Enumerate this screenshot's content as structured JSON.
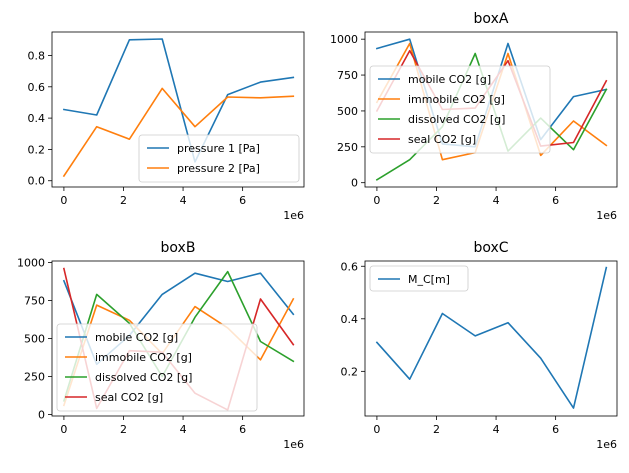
{
  "chart_data": [
    {
      "type": "line",
      "title": "",
      "xlabel": "",
      "ylabel": "",
      "x_multiplier": "1e6",
      "xlim": [
        -0.4,
        8.06
      ],
      "ylim": [
        -0.04,
        0.95
      ],
      "xticks": [
        0,
        2,
        4,
        6
      ],
      "yticks": [
        0.0,
        0.2,
        0.4,
        0.6,
        0.8
      ],
      "ytick_labels": [
        "0.0",
        "0.2",
        "0.4",
        "0.6",
        "0.8"
      ],
      "x": [
        0,
        1.1,
        2.2,
        3.3,
        4.4,
        5.5,
        6.6,
        7.7
      ],
      "legend_position": "lower right",
      "series": [
        {
          "name": "pressure 1 [Pa]",
          "color": "#1f77b4",
          "values": [
            0.455,
            0.42,
            0.9,
            0.905,
            0.12,
            0.55,
            0.63,
            0.66
          ]
        },
        {
          "name": "pressure 2 [Pa]",
          "color": "#ff7f0e",
          "values": [
            0.03,
            0.345,
            0.265,
            0.59,
            0.345,
            0.535,
            0.53,
            0.54
          ]
        }
      ]
    },
    {
      "type": "line",
      "title": "boxA",
      "xlabel": "",
      "ylabel": "",
      "x_multiplier": "1e6",
      "xlim": [
        -0.4,
        8.06
      ],
      "ylim": [
        -30,
        1050
      ],
      "xticks": [
        0,
        2,
        4,
        6
      ],
      "yticks": [
        0,
        250,
        500,
        750,
        1000
      ],
      "ytick_labels": [
        "0",
        "250",
        "500",
        "750",
        "1000"
      ],
      "x": [
        0,
        1.1,
        2.2,
        3.3,
        4.4,
        5.5,
        6.6,
        7.7
      ],
      "legend_position": "center left",
      "series": [
        {
          "name": "mobile CO2 [g]",
          "color": "#1f77b4",
          "values": [
            935,
            1000,
            270,
            250,
            970,
            300,
            600,
            650
          ]
        },
        {
          "name": "immobile CO2 [g]",
          "color": "#ff7f0e",
          "values": [
            560,
            970,
            160,
            210,
            900,
            190,
            430,
            260
          ]
        },
        {
          "name": "dissolved CO2 [g]",
          "color": "#2ca02c",
          "values": [
            20,
            160,
            390,
            900,
            220,
            450,
            230,
            650
          ]
        },
        {
          "name": "seal CO2 [g]",
          "color": "#d62728",
          "values": [
            500,
            920,
            510,
            520,
            850,
            255,
            280,
            710
          ]
        }
      ]
    },
    {
      "type": "line",
      "title": "boxB",
      "xlabel": "",
      "ylabel": "",
      "x_multiplier": "1e6",
      "xlim": [
        -0.4,
        8.06
      ],
      "ylim": [
        -10,
        1010
      ],
      "xticks": [
        0,
        2,
        4,
        6
      ],
      "yticks": [
        0,
        250,
        500,
        750,
        1000
      ],
      "ytick_labels": [
        "0",
        "250",
        "500",
        "750",
        "1000"
      ],
      "x": [
        0,
        1.1,
        2.2,
        3.3,
        4.4,
        5.5,
        6.6,
        7.7
      ],
      "legend_position": "lower left",
      "series": [
        {
          "name": "mobile CO2 [g]",
          "color": "#1f77b4",
          "values": [
            880,
            330,
            520,
            790,
            930,
            875,
            930,
            660
          ]
        },
        {
          "name": "immobile CO2 [g]",
          "color": "#ff7f0e",
          "values": [
            60,
            720,
            620,
            400,
            710,
            570,
            360,
            760
          ]
        },
        {
          "name": "dissolved CO2 [g]",
          "color": "#2ca02c",
          "values": [
            90,
            790,
            600,
            250,
            640,
            940,
            480,
            350
          ]
        },
        {
          "name": "seal CO2 [g]",
          "color": "#d62728",
          "values": [
            960,
            40,
            420,
            410,
            140,
            30,
            760,
            460
          ]
        }
      ]
    },
    {
      "type": "line",
      "title": "boxC",
      "xlabel": "",
      "ylabel": "",
      "x_multiplier": "1e6",
      "xlim": [
        -0.4,
        8.06
      ],
      "ylim": [
        0.03,
        0.62
      ],
      "xticks": [
        0,
        2,
        4,
        6
      ],
      "yticks": [
        0.2,
        0.4,
        0.6
      ],
      "ytick_labels": [
        "0.2",
        "0.4",
        "0.6"
      ],
      "x": [
        0,
        1.1,
        2.2,
        3.3,
        4.4,
        5.5,
        6.6,
        7.7
      ],
      "legend_position": "upper left",
      "series": [
        {
          "name": "M_C[m]",
          "color": "#1f77b4",
          "values": [
            0.31,
            0.17,
            0.42,
            0.335,
            0.385,
            0.25,
            0.06,
            0.595
          ]
        }
      ]
    }
  ]
}
